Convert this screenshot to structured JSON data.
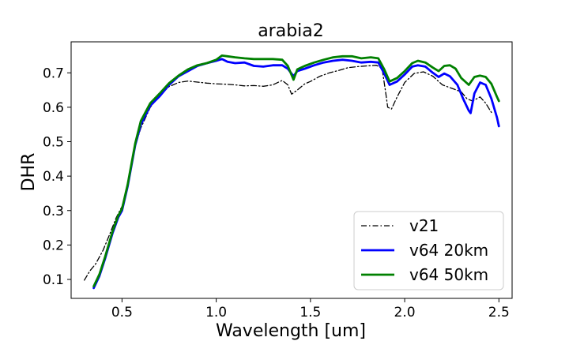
{
  "chart_data": {
    "type": "line",
    "title": "arabia2",
    "xlabel": "Wavelength [um]",
    "ylabel": "DHR",
    "xlim": [
      0.23,
      2.57
    ],
    "ylim": [
      0.045,
      0.79
    ],
    "xticks": [
      {
        "value": 0.5,
        "label": "0.5"
      },
      {
        "value": 1.0,
        "label": "1.0"
      },
      {
        "value": 1.5,
        "label": "1.5"
      },
      {
        "value": 2.0,
        "label": "2.0"
      },
      {
        "value": 2.5,
        "label": "2.5"
      }
    ],
    "yticks": [
      {
        "value": 0.1,
        "label": "0.1"
      },
      {
        "value": 0.2,
        "label": "0.2"
      },
      {
        "value": 0.3,
        "label": "0.3"
      },
      {
        "value": 0.4,
        "label": "0.4"
      },
      {
        "value": 0.5,
        "label": "0.5"
      },
      {
        "value": 0.6,
        "label": "0.6"
      },
      {
        "value": 0.7,
        "label": "0.7"
      }
    ],
    "grid": false,
    "legend_position": "lower-right",
    "series": [
      {
        "name": "v21",
        "color": "#000000",
        "style": "dashdot",
        "points": [
          [
            0.3,
            0.098
          ],
          [
            0.33,
            0.125
          ],
          [
            0.36,
            0.145
          ],
          [
            0.4,
            0.185
          ],
          [
            0.43,
            0.225
          ],
          [
            0.47,
            0.28
          ],
          [
            0.5,
            0.312
          ],
          [
            0.53,
            0.37
          ],
          [
            0.56,
            0.47
          ],
          [
            0.6,
            0.54
          ],
          [
            0.65,
            0.6
          ],
          [
            0.7,
            0.635
          ],
          [
            0.75,
            0.66
          ],
          [
            0.8,
            0.672
          ],
          [
            0.85,
            0.676
          ],
          [
            0.9,
            0.673
          ],
          [
            0.95,
            0.67
          ],
          [
            1.0,
            0.668
          ],
          [
            1.05,
            0.667
          ],
          [
            1.1,
            0.665
          ],
          [
            1.15,
            0.662
          ],
          [
            1.2,
            0.663
          ],
          [
            1.25,
            0.661
          ],
          [
            1.3,
            0.665
          ],
          [
            1.35,
            0.678
          ],
          [
            1.38,
            0.665
          ],
          [
            1.4,
            0.638
          ],
          [
            1.43,
            0.65
          ],
          [
            1.47,
            0.668
          ],
          [
            1.5,
            0.675
          ],
          [
            1.55,
            0.69
          ],
          [
            1.6,
            0.7
          ],
          [
            1.65,
            0.707
          ],
          [
            1.7,
            0.715
          ],
          [
            1.75,
            0.718
          ],
          [
            1.8,
            0.72
          ],
          [
            1.85,
            0.722
          ],
          [
            1.88,
            0.713
          ],
          [
            1.9,
            0.64
          ],
          [
            1.91,
            0.6
          ],
          [
            1.93,
            0.595
          ],
          [
            1.96,
            0.63
          ],
          [
            2.0,
            0.672
          ],
          [
            2.05,
            0.698
          ],
          [
            2.1,
            0.703
          ],
          [
            2.15,
            0.69
          ],
          [
            2.2,
            0.665
          ],
          [
            2.25,
            0.655
          ],
          [
            2.3,
            0.645
          ],
          [
            2.33,
            0.625
          ],
          [
            2.36,
            0.618
          ],
          [
            2.4,
            0.63
          ],
          [
            2.43,
            0.612
          ],
          [
            2.46,
            0.585
          ]
        ]
      },
      {
        "name": "v64 20km",
        "color": "#0000ff",
        "style": "solid",
        "points": [
          [
            0.35,
            0.075
          ],
          [
            0.38,
            0.11
          ],
          [
            0.41,
            0.16
          ],
          [
            0.45,
            0.235
          ],
          [
            0.48,
            0.28
          ],
          [
            0.5,
            0.3
          ],
          [
            0.53,
            0.37
          ],
          [
            0.57,
            0.49
          ],
          [
            0.6,
            0.55
          ],
          [
            0.65,
            0.605
          ],
          [
            0.7,
            0.632
          ],
          [
            0.75,
            0.665
          ],
          [
            0.8,
            0.69
          ],
          [
            0.85,
            0.705
          ],
          [
            0.9,
            0.72
          ],
          [
            0.95,
            0.728
          ],
          [
            1.0,
            0.735
          ],
          [
            1.03,
            0.74
          ],
          [
            1.06,
            0.732
          ],
          [
            1.1,
            0.728
          ],
          [
            1.15,
            0.73
          ],
          [
            1.2,
            0.72
          ],
          [
            1.25,
            0.718
          ],
          [
            1.3,
            0.722
          ],
          [
            1.35,
            0.722
          ],
          [
            1.38,
            0.712
          ],
          [
            1.41,
            0.69
          ],
          [
            1.43,
            0.705
          ],
          [
            1.47,
            0.712
          ],
          [
            1.52,
            0.722
          ],
          [
            1.57,
            0.73
          ],
          [
            1.62,
            0.735
          ],
          [
            1.67,
            0.738
          ],
          [
            1.72,
            0.735
          ],
          [
            1.77,
            0.73
          ],
          [
            1.82,
            0.732
          ],
          [
            1.86,
            0.73
          ],
          [
            1.89,
            0.7
          ],
          [
            1.92,
            0.665
          ],
          [
            1.96,
            0.675
          ],
          [
            2.0,
            0.695
          ],
          [
            2.04,
            0.718
          ],
          [
            2.07,
            0.722
          ],
          [
            2.11,
            0.718
          ],
          [
            2.15,
            0.7
          ],
          [
            2.18,
            0.688
          ],
          [
            2.21,
            0.698
          ],
          [
            2.24,
            0.69
          ],
          [
            2.28,
            0.665
          ],
          [
            2.31,
            0.625
          ],
          [
            2.34,
            0.59
          ],
          [
            2.35,
            0.583
          ],
          [
            2.37,
            0.64
          ],
          [
            2.4,
            0.672
          ],
          [
            2.43,
            0.665
          ],
          [
            2.46,
            0.625
          ],
          [
            2.49,
            0.57
          ],
          [
            2.5,
            0.545
          ]
        ]
      },
      {
        "name": "v64 50km",
        "color": "#008000",
        "style": "solid",
        "points": [
          [
            0.35,
            0.08
          ],
          [
            0.38,
            0.115
          ],
          [
            0.41,
            0.165
          ],
          [
            0.45,
            0.24
          ],
          [
            0.48,
            0.285
          ],
          [
            0.5,
            0.305
          ],
          [
            0.53,
            0.375
          ],
          [
            0.57,
            0.495
          ],
          [
            0.6,
            0.56
          ],
          [
            0.65,
            0.612
          ],
          [
            0.7,
            0.64
          ],
          [
            0.75,
            0.67
          ],
          [
            0.8,
            0.692
          ],
          [
            0.85,
            0.71
          ],
          [
            0.9,
            0.722
          ],
          [
            0.95,
            0.728
          ],
          [
            1.0,
            0.738
          ],
          [
            1.03,
            0.75
          ],
          [
            1.06,
            0.748
          ],
          [
            1.1,
            0.745
          ],
          [
            1.15,
            0.742
          ],
          [
            1.2,
            0.74
          ],
          [
            1.25,
            0.74
          ],
          [
            1.3,
            0.74
          ],
          [
            1.35,
            0.738
          ],
          [
            1.38,
            0.72
          ],
          [
            1.41,
            0.68
          ],
          [
            1.43,
            0.71
          ],
          [
            1.47,
            0.72
          ],
          [
            1.52,
            0.73
          ],
          [
            1.57,
            0.738
          ],
          [
            1.62,
            0.745
          ],
          [
            1.67,
            0.748
          ],
          [
            1.72,
            0.748
          ],
          [
            1.77,
            0.742
          ],
          [
            1.82,
            0.745
          ],
          [
            1.86,
            0.742
          ],
          [
            1.89,
            0.712
          ],
          [
            1.92,
            0.675
          ],
          [
            1.96,
            0.685
          ],
          [
            2.0,
            0.705
          ],
          [
            2.04,
            0.728
          ],
          [
            2.07,
            0.735
          ],
          [
            2.11,
            0.73
          ],
          [
            2.15,
            0.715
          ],
          [
            2.18,
            0.705
          ],
          [
            2.21,
            0.72
          ],
          [
            2.24,
            0.722
          ],
          [
            2.27,
            0.712
          ],
          [
            2.3,
            0.685
          ],
          [
            2.34,
            0.665
          ],
          [
            2.37,
            0.688
          ],
          [
            2.4,
            0.692
          ],
          [
            2.43,
            0.688
          ],
          [
            2.46,
            0.668
          ],
          [
            2.49,
            0.63
          ],
          [
            2.5,
            0.618
          ]
        ]
      }
    ]
  }
}
